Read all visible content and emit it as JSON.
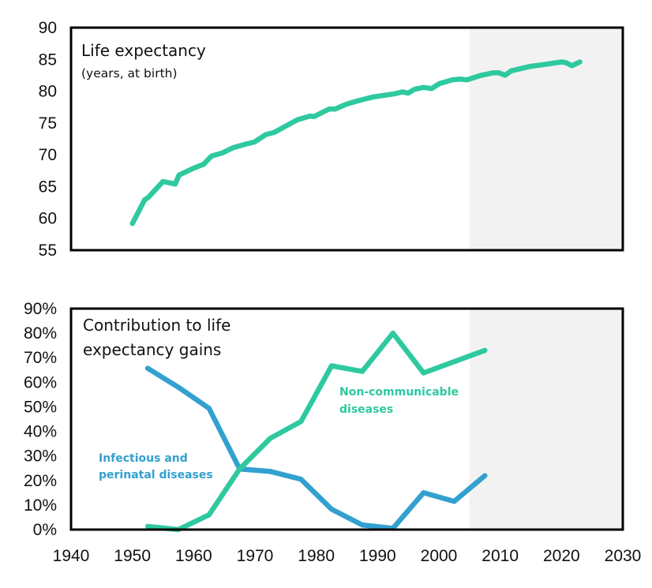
{
  "chart_data": [
    {
      "type": "line",
      "title": "Life expectancy",
      "subtitle": "(years, at birth)",
      "xlabel": "",
      "ylabel": "",
      "xlim": [
        1940,
        2030
      ],
      "ylim": [
        55,
        90
      ],
      "yticks": [
        55,
        60,
        65,
        70,
        75,
        80,
        85,
        90
      ],
      "ytick_labels": [
        "55",
        "60",
        "65",
        "70",
        "75",
        "80",
        "85",
        "90"
      ],
      "grid": false,
      "shaded_region": {
        "from": 2005,
        "to": 2030,
        "color": "#f2f2f2"
      },
      "series": [
        {
          "name": "Life expectancy",
          "color": "#2ec99f",
          "x": [
            1950,
            1952,
            1952.6,
            1955,
            1957,
            1957.6,
            1960,
            1961.6,
            1962.9,
            1964.7,
            1966.4,
            1968.6,
            1969.9,
            1971.8,
            1973.1,
            1976.9,
            1979,
            1979.6,
            1982.1,
            1983.1,
            1985,
            1987.2,
            1989.3,
            1992.8,
            1994.1,
            1995,
            1996,
            1997.5,
            1998.8,
            2000.1,
            2002.2,
            2003.4,
            2004.6,
            2006.9,
            2008.9,
            2009.8,
            2010.8,
            2011.8,
            2014.9,
            2017.2,
            2020,
            2020.7,
            2021.7,
            2023
          ],
          "values": [
            59.2,
            62.9,
            63.3,
            65.8,
            65.4,
            66.8,
            67.9,
            68.5,
            69.8,
            70.3,
            71.1,
            71.7,
            72.0,
            73.2,
            73.5,
            75.5,
            76.1,
            76.0,
            77.2,
            77.2,
            78.0,
            78.6,
            79.1,
            79.6,
            79.9,
            79.7,
            80.3,
            80.6,
            80.4,
            81.2,
            81.8,
            81.9,
            81.8,
            82.5,
            82.9,
            82.9,
            82.5,
            83.2,
            83.9,
            84.2,
            84.6,
            84.5,
            84.0,
            84.6
          ]
        }
      ]
    },
    {
      "type": "line",
      "title": "Contribution to life expectancy gains",
      "title_lines": [
        "Contribution to life",
        "expectancy gains"
      ],
      "xlabel": "",
      "ylabel": "",
      "xlim": [
        1940,
        2030
      ],
      "ylim": [
        0,
        90
      ],
      "xticks": [
        1940,
        1950,
        1960,
        1970,
        1980,
        1990,
        2000,
        2010,
        2020,
        2030
      ],
      "xtick_labels": [
        "1940",
        "1950",
        "1960",
        "1970",
        "1980",
        "1990",
        "2000",
        "2010",
        "2020",
        "2030"
      ],
      "yticks": [
        0,
        10,
        20,
        30,
        40,
        50,
        60,
        70,
        80,
        90
      ],
      "ytick_labels": [
        "0%",
        "10%",
        "20%",
        "30%",
        "40%",
        "50%",
        "60%",
        "70%",
        "80%",
        "90%"
      ],
      "grid": false,
      "shaded_region": {
        "from": 2005,
        "to": 2030,
        "color": "#f2f2f2"
      },
      "series": [
        {
          "name": "Infectious and perinatal diseases",
          "label_lines": [
            "Infectious and",
            "perinatal diseases"
          ],
          "color": "#32a1cf",
          "x": [
            1952.5,
            1957.5,
            1962.5,
            1967.5,
            1972.5,
            1977.5,
            1982.5,
            1987.5,
            1992.5,
            1997.5,
            2002.5,
            2007.5
          ],
          "values": [
            65.7,
            58.0,
            49.4,
            24.7,
            23.7,
            20.5,
            8.3,
            1.9,
            0.5,
            15.0,
            11.5,
            22.0
          ]
        },
        {
          "name": "Non-communicable diseases",
          "label_lines": [
            "Non-communicable",
            "diseases"
          ],
          "color": "#2ec99f",
          "x": [
            1952.5,
            1957.5,
            1962.5,
            1967.5,
            1972.5,
            1977.5,
            1982.5,
            1987.5,
            1992.5,
            1997.5,
            2002.5,
            2007.5
          ],
          "values": [
            1.3,
            0.0,
            6.0,
            24.7,
            37.2,
            44.0,
            66.7,
            64.4,
            80.0,
            63.8,
            68.4,
            73.0
          ]
        }
      ]
    }
  ]
}
